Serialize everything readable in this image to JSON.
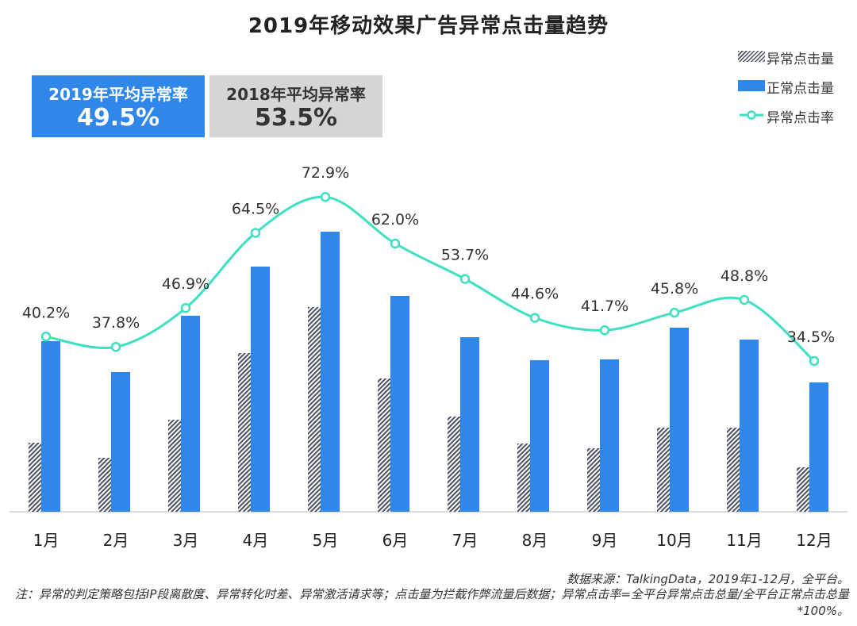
{
  "title": "2019年移动效果广告异常点击量趋势",
  "stats": [
    {
      "label": "2019年平均异常率",
      "value": "49.5%"
    },
    {
      "label": "2018年平均异常率",
      "value": "53.5%"
    }
  ],
  "legend": {
    "abnormal_clicks": "异常点击量",
    "normal_clicks": "正常点击量",
    "abnormal_rate": "异常点击率"
  },
  "colors": {
    "normal": "#2f87ea",
    "abnormal": "#4a4f63",
    "rate_line": "#3de0c0",
    "box_2018": "#d5d5d5"
  },
  "chart_data": {
    "type": "bar",
    "categories": [
      "1月",
      "2月",
      "3月",
      "4月",
      "5月",
      "6月",
      "7月",
      "8月",
      "9月",
      "10月",
      "11月",
      "12月"
    ],
    "series": [
      {
        "name": "异常点击量",
        "values": [
          87,
          68,
          116,
          200,
          258,
          168,
          120,
          86,
          80,
          106,
          106,
          56
        ]
      },
      {
        "name": "正常点击量",
        "values": [
          215,
          176,
          247,
          309,
          353,
          272,
          220,
          191,
          192,
          232,
          217,
          163
        ]
      },
      {
        "name": "异常点击率",
        "values": [
          40.2,
          37.8,
          46.9,
          64.5,
          72.9,
          62.0,
          53.7,
          44.6,
          41.7,
          45.8,
          48.8,
          34.5
        ],
        "labels": [
          "40.2%",
          "37.8%",
          "46.9%",
          "64.5%",
          "72.9%",
          "62.0%",
          "53.7%",
          "44.6%",
          "41.7%",
          "45.8%",
          "48.8%",
          "34.5%"
        ]
      }
    ],
    "bar_ylim": [
      0,
      400
    ],
    "rate_ylim": [
      15,
      80
    ],
    "grid": false,
    "legend_position": "top-right"
  },
  "footer": {
    "source": "数据来源：TalkingData，2019年1-12月，全平台。",
    "note": "注：异常的判定策略包括IP段离散度、异常转化时差、异常激活请求等；点击量为拦截作弊流量后数据；异常点击率=全平台异常点击总量/全平台正常点击总量*100%。"
  }
}
